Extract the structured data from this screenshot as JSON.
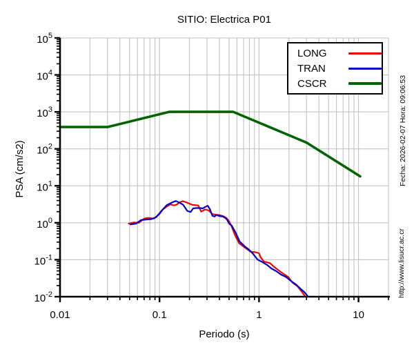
{
  "title": "SITIO: Electrica P01",
  "side_annotations": {
    "datetime": "Fecha: 2026-02-07  Hora: 09:06:53",
    "url": "http://www.lisucr.ac.cr"
  },
  "chart_data": {
    "type": "line",
    "title": "SITIO: Electrica P01",
    "xlabel": "Periodo (s)",
    "ylabel": "PSA (cm/s2)",
    "x_scale": "log",
    "y_scale": "log",
    "xlim": [
      0.01,
      20
    ],
    "ylim": [
      0.01,
      100000
    ],
    "x_major_ticks": [
      0.01,
      0.1,
      1,
      10
    ],
    "x_tick_labels": [
      "0.01",
      "0.1",
      "1",
      "10"
    ],
    "y_tick_exponents": [
      "5",
      "4",
      "3",
      "2",
      "1",
      "0",
      "-1",
      "-2"
    ],
    "grid": "vertical log grid at all minor+major ticks, horizontal grid at decades only",
    "legend_position": "top-right",
    "colors": {
      "grid": "#bdbdbd",
      "axis": "#000000",
      "background": "#ffffff"
    },
    "series": [
      {
        "name": "LONG",
        "color": "#ee0000",
        "line_width": 2.2,
        "points": [
          [
            0.049,
            0.95
          ],
          [
            0.055,
            1.02
          ],
          [
            0.062,
            1.0
          ],
          [
            0.07,
            1.3
          ],
          [
            0.077,
            1.36
          ],
          [
            0.088,
            1.3
          ],
          [
            0.096,
            1.6
          ],
          [
            0.106,
            2.2
          ],
          [
            0.115,
            2.6
          ],
          [
            0.128,
            3.15
          ],
          [
            0.14,
            2.95
          ],
          [
            0.149,
            3.1
          ],
          [
            0.158,
            3.55
          ],
          [
            0.171,
            3.85
          ],
          [
            0.185,
            3.6
          ],
          [
            0.2,
            3.3
          ],
          [
            0.214,
            3.05
          ],
          [
            0.245,
            2.95
          ],
          [
            0.262,
            2.0
          ],
          [
            0.288,
            2.3
          ],
          [
            0.312,
            2.15
          ],
          [
            0.338,
            1.73
          ],
          [
            0.363,
            1.66
          ],
          [
            0.398,
            1.62
          ],
          [
            0.444,
            1.48
          ],
          [
            0.472,
            1.33
          ],
          [
            0.5,
            1.1
          ],
          [
            0.53,
            0.8
          ],
          [
            0.57,
            0.48
          ],
          [
            0.63,
            0.28
          ],
          [
            0.71,
            0.22
          ],
          [
            0.82,
            0.165
          ],
          [
            0.92,
            0.16
          ],
          [
            1.0,
            0.15
          ],
          [
            1.04,
            0.115
          ],
          [
            1.12,
            0.089
          ],
          [
            1.29,
            0.081
          ],
          [
            1.41,
            0.065
          ],
          [
            1.57,
            0.052
          ],
          [
            1.75,
            0.042
          ],
          [
            1.97,
            0.034
          ],
          [
            2.17,
            0.024
          ],
          [
            2.44,
            0.019
          ],
          [
            2.73,
            0.013
          ],
          [
            2.92,
            0.01
          ]
        ]
      },
      {
        "name": "TRAN",
        "color": "#0000cd",
        "line_width": 2.2,
        "points": [
          [
            0.051,
            0.9
          ],
          [
            0.058,
            0.95
          ],
          [
            0.065,
            1.18
          ],
          [
            0.073,
            1.22
          ],
          [
            0.082,
            1.25
          ],
          [
            0.092,
            1.4
          ],
          [
            0.1,
            1.75
          ],
          [
            0.108,
            2.3
          ],
          [
            0.118,
            3.0
          ],
          [
            0.135,
            3.6
          ],
          [
            0.146,
            3.9
          ],
          [
            0.158,
            3.5
          ],
          [
            0.172,
            3.1
          ],
          [
            0.19,
            2.1
          ],
          [
            0.205,
            1.95
          ],
          [
            0.218,
            2.45
          ],
          [
            0.235,
            2.5
          ],
          [
            0.255,
            2.5
          ],
          [
            0.272,
            2.45
          ],
          [
            0.29,
            2.7
          ],
          [
            0.305,
            2.9
          ],
          [
            0.322,
            2.3
          ],
          [
            0.34,
            1.55
          ],
          [
            0.357,
            1.47
          ],
          [
            0.372,
            1.63
          ],
          [
            0.39,
            1.55
          ],
          [
            0.41,
            1.5
          ],
          [
            0.435,
            1.47
          ],
          [
            0.458,
            1.35
          ],
          [
            0.478,
            1.2
          ],
          [
            0.5,
            0.95
          ],
          [
            0.53,
            0.85
          ],
          [
            0.58,
            0.55
          ],
          [
            0.64,
            0.31
          ],
          [
            0.72,
            0.23
          ],
          [
            0.79,
            0.19
          ],
          [
            0.87,
            0.145
          ],
          [
            0.97,
            0.1
          ],
          [
            1.06,
            0.089
          ],
          [
            1.21,
            0.072
          ],
          [
            1.33,
            0.058
          ],
          [
            1.49,
            0.049
          ],
          [
            1.68,
            0.039
          ],
          [
            1.87,
            0.034
          ],
          [
            2.08,
            0.027
          ],
          [
            2.37,
            0.021
          ],
          [
            2.58,
            0.017
          ],
          [
            2.86,
            0.0133
          ],
          [
            3.08,
            0.0104
          ]
        ]
      },
      {
        "name": "CSCR",
        "color": "#006400",
        "line_width": 3.6,
        "points": [
          [
            0.01,
            390
          ],
          [
            0.03,
            390
          ],
          [
            0.125,
            1000
          ],
          [
            0.55,
            1000
          ],
          [
            3.0,
            148
          ],
          [
            10.4,
            18
          ]
        ]
      }
    ]
  }
}
